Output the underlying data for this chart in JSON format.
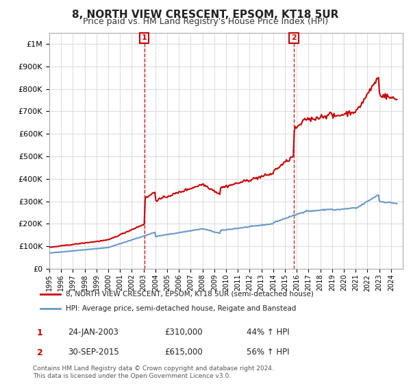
{
  "title": "8, NORTH VIEW CRESCENT, EPSOM, KT18 5UR",
  "subtitle": "Price paid vs. HM Land Registry's House Price Index (HPI)",
  "legend_line1": "8, NORTH VIEW CRESCENT, EPSOM, KT18 5UR (semi-detached house)",
  "legend_line2": "HPI: Average price, semi-detached house, Reigate and Banstead",
  "transaction1_date": "24-JAN-2003",
  "transaction1_price": "£310,000",
  "transaction1_hpi": "44% ↑ HPI",
  "transaction1_x": 2003.07,
  "transaction1_y": 310000,
  "transaction2_date": "30-SEP-2015",
  "transaction2_price": "£615,000",
  "transaction2_hpi": "56% ↑ HPI",
  "transaction2_x": 2015.75,
  "transaction2_y": 615000,
  "footer": "Contains HM Land Registry data © Crown copyright and database right 2024.\nThis data is licensed under the Open Government Licence v3.0.",
  "hpi_color": "#6699cc",
  "price_color": "#cc0000",
  "vline_color": "#cc0000",
  "ylim": [
    0,
    1050000
  ],
  "xlim_start": 1995.0,
  "xlim_end": 2025.0,
  "background_color": "#ffffff",
  "grid_color": "#dddddd"
}
